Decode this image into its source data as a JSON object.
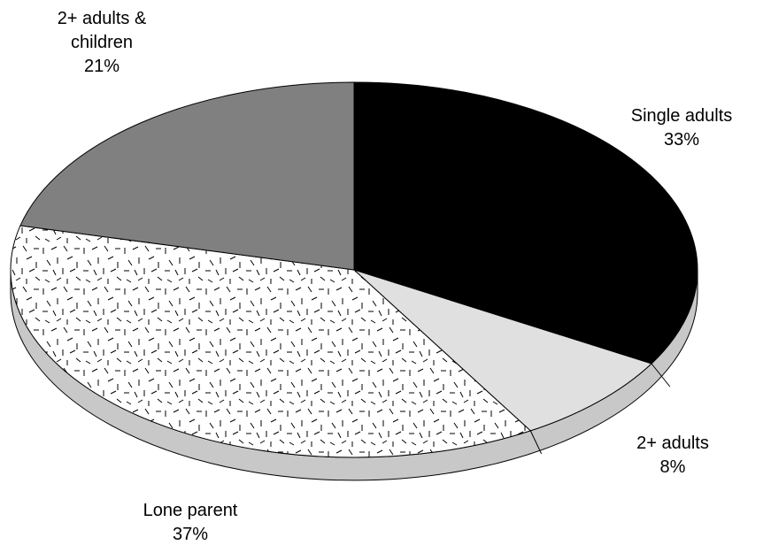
{
  "chart_data": {
    "type": "pie",
    "categories": [
      "Single adults",
      "2+ adults",
      "Lone parent",
      "2+ adults & children"
    ],
    "values": [
      33,
      8,
      37,
      21
    ],
    "value_labels": [
      "33%",
      "8%",
      "37%",
      "21%"
    ],
    "colors": [
      "#000000",
      "#e0e0e0",
      "#ffffff",
      "#808080"
    ],
    "textures": [
      null,
      null,
      "dashes",
      null
    ],
    "side_color": "#c8c8c8"
  }
}
